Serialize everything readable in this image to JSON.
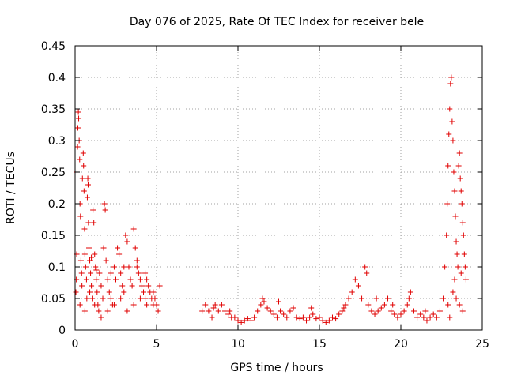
{
  "chart_data": {
    "type": "scatter",
    "title": "Day 076 of 2025, Rate Of TEC Index for receiver bele",
    "xlabel": "GPS time / hours",
    "ylabel": "ROTI / TECUs",
    "xlim": [
      0,
      25
    ],
    "ylim": [
      0,
      0.45
    ],
    "xticks": [
      0,
      5,
      10,
      15,
      20,
      25
    ],
    "yticks": [
      0,
      0.05,
      0.1,
      0.15,
      0.2,
      0.25,
      0.3,
      0.35,
      0.4,
      0.45
    ],
    "xtick_labels": [
      "0",
      "5",
      "10",
      "15",
      "20",
      "25"
    ],
    "ytick_labels": [
      "0",
      "0.05",
      "0.1",
      "0.15",
      "0.2",
      "0.25",
      "0.3",
      "0.35",
      "0.4",
      "0.45"
    ],
    "grid": true,
    "marker": "+",
    "marker_color": "#e00000",
    "series": [
      {
        "points": [
          [
            0.05,
            0.06
          ],
          [
            0.08,
            0.08
          ],
          [
            0.1,
            0.12
          ],
          [
            0.12,
            0.25
          ],
          [
            0.15,
            0.29
          ],
          [
            0.17,
            0.32
          ],
          [
            0.2,
            0.345
          ],
          [
            0.22,
            0.335
          ],
          [
            0.25,
            0.3
          ],
          [
            0.28,
            0.27
          ],
          [
            0.3,
            0.2
          ],
          [
            0.33,
            0.18
          ],
          [
            0.36,
            0.11
          ],
          [
            0.4,
            0.09
          ],
          [
            0.42,
            0.07
          ],
          [
            0.45,
            0.24
          ],
          [
            0.5,
            0.28
          ],
          [
            0.52,
            0.26
          ],
          [
            0.55,
            0.22
          ],
          [
            0.58,
            0.16
          ],
          [
            0.6,
            0.12
          ],
          [
            0.65,
            0.1
          ],
          [
            0.7,
            0.08
          ],
          [
            0.72,
            0.05
          ],
          [
            0.75,
            0.21
          ],
          [
            0.78,
            0.24
          ],
          [
            0.8,
            0.23
          ],
          [
            0.82,
            0.17
          ],
          [
            0.85,
            0.13
          ],
          [
            0.9,
            0.11
          ],
          [
            0.95,
            0.09
          ],
          [
            1.0,
            0.07
          ],
          [
            1.05,
            0.05
          ],
          [
            1.1,
            0.19
          ],
          [
            1.15,
            0.17
          ],
          [
            1.2,
            0.12
          ],
          [
            1.25,
            0.1
          ],
          [
            1.3,
            0.08
          ],
          [
            1.35,
            0.06
          ],
          [
            1.4,
            0.04
          ],
          [
            1.45,
            0.03
          ],
          [
            1.5,
            0.09
          ],
          [
            1.6,
            0.07
          ],
          [
            1.7,
            0.05
          ],
          [
            1.75,
            0.13
          ],
          [
            1.8,
            0.2
          ],
          [
            1.85,
            0.19
          ],
          [
            1.9,
            0.11
          ],
          [
            2.0,
            0.08
          ],
          [
            2.1,
            0.06
          ],
          [
            2.2,
            0.05
          ],
          [
            2.3,
            0.04
          ],
          [
            2.4,
            0.1
          ],
          [
            2.5,
            0.08
          ],
          [
            2.6,
            0.13
          ],
          [
            2.7,
            0.12
          ],
          [
            2.8,
            0.09
          ],
          [
            2.9,
            0.07
          ],
          [
            3.0,
            0.06
          ],
          [
            3.1,
            0.15
          ],
          [
            3.2,
            0.14
          ],
          [
            3.3,
            0.1
          ],
          [
            3.4,
            0.08
          ],
          [
            3.5,
            0.07
          ],
          [
            3.6,
            0.16
          ],
          [
            3.7,
            0.13
          ],
          [
            3.8,
            0.11
          ],
          [
            3.9,
            0.09
          ],
          [
            4.0,
            0.08
          ],
          [
            4.1,
            0.07
          ],
          [
            4.2,
            0.06
          ],
          [
            4.3,
            0.05
          ],
          [
            4.4,
            0.08
          ],
          [
            4.5,
            0.07
          ],
          [
            4.6,
            0.06
          ],
          [
            4.7,
            0.05
          ],
          [
            4.8,
            0.04
          ],
          [
            4.9,
            0.05
          ],
          [
            5.0,
            0.04
          ],
          [
            5.2,
            0.07
          ],
          [
            0.3,
            0.04
          ],
          [
            0.6,
            0.03
          ],
          [
            0.9,
            0.06
          ],
          [
            1.2,
            0.04
          ],
          [
            1.6,
            0.02
          ],
          [
            2.0,
            0.03
          ],
          [
            2.4,
            0.04
          ],
          [
            2.8,
            0.05
          ],
          [
            3.2,
            0.03
          ],
          [
            3.6,
            0.04
          ],
          [
            4.0,
            0.05
          ],
          [
            4.4,
            0.04
          ],
          [
            4.8,
            0.06
          ],
          [
            5.1,
            0.03
          ],
          [
            1.0,
            0.115
          ],
          [
            1.3,
            0.095
          ],
          [
            2.2,
            0.09
          ],
          [
            3.0,
            0.1
          ],
          [
            3.8,
            0.1
          ],
          [
            4.3,
            0.09
          ],
          [
            7.8,
            0.03
          ],
          [
            8.0,
            0.04
          ],
          [
            8.2,
            0.03
          ],
          [
            8.4,
            0.02
          ],
          [
            8.6,
            0.04
          ],
          [
            8.8,
            0.03
          ],
          [
            9.0,
            0.04
          ],
          [
            9.2,
            0.03
          ],
          [
            9.4,
            0.025
          ],
          [
            9.6,
            0.02
          ],
          [
            9.8,
            0.02
          ],
          [
            10.0,
            0.015
          ],
          [
            10.2,
            0.012
          ],
          [
            10.4,
            0.015
          ],
          [
            10.6,
            0.018
          ],
          [
            10.8,
            0.015
          ],
          [
            11.0,
            0.02
          ],
          [
            11.2,
            0.03
          ],
          [
            11.4,
            0.04
          ],
          [
            11.6,
            0.045
          ],
          [
            11.8,
            0.035
          ],
          [
            12.0,
            0.03
          ],
          [
            12.2,
            0.025
          ],
          [
            12.4,
            0.02
          ],
          [
            12.6,
            0.03
          ],
          [
            12.8,
            0.025
          ],
          [
            13.0,
            0.02
          ],
          [
            13.2,
            0.03
          ],
          [
            13.4,
            0.035
          ],
          [
            13.6,
            0.02
          ],
          [
            13.8,
            0.018
          ],
          [
            14.0,
            0.02
          ],
          [
            14.2,
            0.015
          ],
          [
            14.4,
            0.02
          ],
          [
            14.6,
            0.025
          ],
          [
            14.8,
            0.018
          ],
          [
            15.0,
            0.02
          ],
          [
            15.2,
            0.015
          ],
          [
            15.4,
            0.012
          ],
          [
            15.6,
            0.015
          ],
          [
            15.8,
            0.02
          ],
          [
            16.0,
            0.018
          ],
          [
            16.2,
            0.025
          ],
          [
            16.4,
            0.03
          ],
          [
            16.6,
            0.04
          ],
          [
            16.8,
            0.05
          ],
          [
            17.0,
            0.06
          ],
          [
            17.2,
            0.08
          ],
          [
            17.4,
            0.07
          ],
          [
            17.6,
            0.05
          ],
          [
            17.8,
            0.1
          ],
          [
            17.9,
            0.09
          ],
          [
            18.0,
            0.04
          ],
          [
            18.2,
            0.03
          ],
          [
            18.4,
            0.025
          ],
          [
            18.6,
            0.03
          ],
          [
            18.8,
            0.035
          ],
          [
            19.0,
            0.04
          ],
          [
            19.2,
            0.05
          ],
          [
            19.4,
            0.03
          ],
          [
            19.6,
            0.025
          ],
          [
            19.8,
            0.02
          ],
          [
            20.0,
            0.025
          ],
          [
            20.2,
            0.03
          ],
          [
            20.4,
            0.04
          ],
          [
            20.6,
            0.06
          ],
          [
            20.8,
            0.03
          ],
          [
            21.0,
            0.02
          ],
          [
            21.2,
            0.025
          ],
          [
            21.4,
            0.02
          ],
          [
            21.6,
            0.015
          ],
          [
            21.8,
            0.02
          ],
          [
            22.0,
            0.025
          ],
          [
            22.2,
            0.02
          ],
          [
            22.4,
            0.03
          ],
          [
            22.6,
            0.05
          ],
          [
            22.7,
            0.1
          ],
          [
            22.8,
            0.15
          ],
          [
            22.85,
            0.2
          ],
          [
            22.9,
            0.26
          ],
          [
            22.95,
            0.31
          ],
          [
            23.0,
            0.35
          ],
          [
            23.05,
            0.39
          ],
          [
            23.1,
            0.4
          ],
          [
            23.15,
            0.33
          ],
          [
            23.2,
            0.3
          ],
          [
            23.25,
            0.25
          ],
          [
            23.3,
            0.22
          ],
          [
            23.35,
            0.18
          ],
          [
            23.4,
            0.14
          ],
          [
            23.45,
            0.12
          ],
          [
            23.5,
            0.1
          ],
          [
            23.55,
            0.26
          ],
          [
            23.6,
            0.28
          ],
          [
            23.65,
            0.24
          ],
          [
            23.7,
            0.22
          ],
          [
            23.75,
            0.2
          ],
          [
            23.8,
            0.17
          ],
          [
            23.85,
            0.15
          ],
          [
            23.9,
            0.12
          ],
          [
            23.95,
            0.1
          ],
          [
            24.0,
            0.08
          ],
          [
            23.2,
            0.06
          ],
          [
            23.4,
            0.05
          ],
          [
            23.6,
            0.04
          ],
          [
            23.8,
            0.03
          ],
          [
            23.0,
            0.02
          ],
          [
            22.9,
            0.04
          ],
          [
            23.3,
            0.08
          ],
          [
            23.7,
            0.09
          ],
          [
            12.5,
            0.045
          ],
          [
            14.5,
            0.035
          ],
          [
            16.5,
            0.035
          ],
          [
            18.5,
            0.05
          ],
          [
            19.5,
            0.04
          ],
          [
            20.5,
            0.05
          ],
          [
            21.5,
            0.03
          ],
          [
            8.5,
            0.035
          ],
          [
            9.5,
            0.03
          ],
          [
            11.5,
            0.05
          ]
        ]
      }
    ]
  }
}
